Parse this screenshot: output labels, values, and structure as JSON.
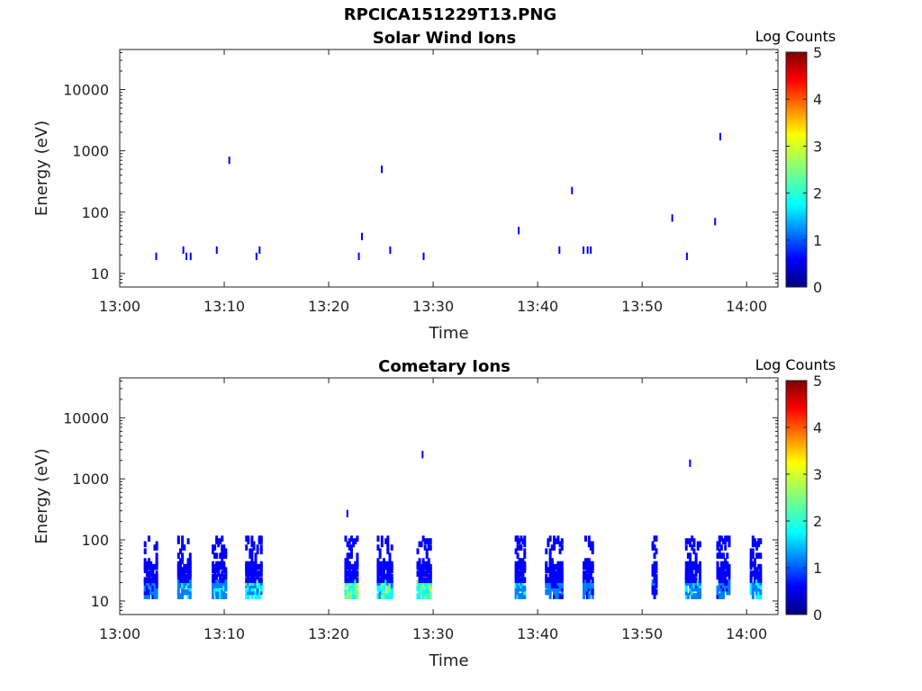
{
  "title": "RPCICA151229T13.PNG",
  "colorbar": {
    "label": "Log Counts",
    "ticks": [
      "0",
      "1",
      "2",
      "3",
      "4",
      "5"
    ],
    "range": [
      0,
      5
    ]
  },
  "colors": {
    "jet": [
      "#00007f",
      "#0000ff",
      "#007fff",
      "#00ffff",
      "#7fff7f",
      "#ffff00",
      "#ff7f00",
      "#ff0000",
      "#7f0000"
    ]
  },
  "chart_data": [
    {
      "type": "heatmap",
      "title": "Solar Wind Ions",
      "xlabel": "Time",
      "ylabel": "Energy (eV)",
      "yscale": "log",
      "ylim": [
        6,
        45000
      ],
      "xlim": [
        "13:00",
        "14:03"
      ],
      "xticks": [
        "13:00",
        "13:10",
        "13:20",
        "13:30",
        "13:40",
        "13:50",
        "14:00"
      ],
      "yticks": [
        "10",
        "100",
        "1000",
        "10000"
      ],
      "points": [
        {
          "t": 3.4,
          "e": 19,
          "c": 0.2
        },
        {
          "t": 6.0,
          "e": 24,
          "c": 0.2
        },
        {
          "t": 6.3,
          "e": 19,
          "c": 0.2
        },
        {
          "t": 6.7,
          "e": 19,
          "c": 0.2
        },
        {
          "t": 9.2,
          "e": 24,
          "c": 0.3
        },
        {
          "t": 10.4,
          "e": 700,
          "c": 0.2
        },
        {
          "t": 13.0,
          "e": 19,
          "c": 0.2
        },
        {
          "t": 13.3,
          "e": 24,
          "c": 0.2
        },
        {
          "t": 22.8,
          "e": 19,
          "c": 0.2
        },
        {
          "t": 23.1,
          "e": 40,
          "c": 0.2
        },
        {
          "t": 25.0,
          "e": 500,
          "c": 0.2
        },
        {
          "t": 25.8,
          "e": 24,
          "c": 0.2
        },
        {
          "t": 29.0,
          "e": 19,
          "c": 0.2
        },
        {
          "t": 38.1,
          "e": 50,
          "c": 0.3
        },
        {
          "t": 42.0,
          "e": 24,
          "c": 0.2
        },
        {
          "t": 43.2,
          "e": 225,
          "c": 0.2
        },
        {
          "t": 44.3,
          "e": 24,
          "c": 0.2
        },
        {
          "t": 44.7,
          "e": 24,
          "c": 0.2
        },
        {
          "t": 45.0,
          "e": 24,
          "c": 0.3
        },
        {
          "t": 52.8,
          "e": 80,
          "c": 0.2
        },
        {
          "t": 54.2,
          "e": 19,
          "c": 0.2
        },
        {
          "t": 56.9,
          "e": 70,
          "c": 0.2
        },
        {
          "t": 57.4,
          "e": 1700,
          "c": 0.2
        }
      ]
    },
    {
      "type": "heatmap",
      "title": "Cometary Ions",
      "xlabel": "Time",
      "ylabel": "Energy (eV)",
      "yscale": "log",
      "ylim": [
        6,
        45000
      ],
      "xlim": [
        "13:00",
        "14:03"
      ],
      "xticks": [
        "13:00",
        "13:10",
        "13:20",
        "13:30",
        "13:40",
        "13:50",
        "14:00"
      ],
      "yticks": [
        "10",
        "100",
        "1000",
        "10000"
      ],
      "clusters": [
        {
          "t0": 2.3,
          "t1": 3.6,
          "c": 0.5
        },
        {
          "t0": 5.5,
          "t1": 6.8,
          "c": 0.6
        },
        {
          "t0": 8.8,
          "t1": 10.2,
          "c": 0.6
        },
        {
          "t0": 12.0,
          "t1": 13.6,
          "c": 0.8
        },
        {
          "t0": 21.5,
          "t1": 22.8,
          "c": 1.0
        },
        {
          "t0": 24.6,
          "t1": 26.1,
          "c": 0.9
        },
        {
          "t0": 28.4,
          "t1": 29.8,
          "c": 1.0
        },
        {
          "t0": 37.8,
          "t1": 38.8,
          "c": 0.6
        },
        {
          "t0": 40.7,
          "t1": 42.4,
          "c": 0.5
        },
        {
          "t0": 44.3,
          "t1": 45.3,
          "c": 0.5
        },
        {
          "t0": 50.9,
          "t1": 51.4,
          "c": 0.4
        },
        {
          "t0": 54.1,
          "t1": 55.6,
          "c": 0.6
        },
        {
          "t0": 57.1,
          "t1": 58.4,
          "c": 0.5
        },
        {
          "t0": 60.3,
          "t1": 61.4,
          "c": 0.7
        }
      ],
      "points": [
        {
          "t": 21.7,
          "e": 270,
          "c": 0.2
        },
        {
          "t": 28.9,
          "e": 2500,
          "c": 0.3
        },
        {
          "t": 54.5,
          "e": 1800,
          "c": 0.3
        }
      ]
    }
  ]
}
